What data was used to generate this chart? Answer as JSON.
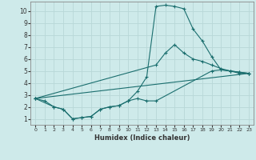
{
  "xlabel": "Humidex (Indice chaleur)",
  "xlim": [
    -0.5,
    23.5
  ],
  "ylim": [
    0.5,
    10.8
  ],
  "xticks": [
    0,
    1,
    2,
    3,
    4,
    5,
    6,
    7,
    8,
    9,
    10,
    11,
    12,
    13,
    14,
    15,
    16,
    17,
    18,
    19,
    20,
    21,
    22,
    23
  ],
  "yticks": [
    1,
    2,
    3,
    4,
    5,
    6,
    7,
    8,
    9,
    10
  ],
  "bg_color": "#ceeaea",
  "line_color": "#1a6e6e",
  "grid_color": "#b8d8d8",
  "series": [
    {
      "x": [
        0,
        1,
        2,
        3,
        4,
        5,
        6,
        7,
        8,
        9,
        10,
        11,
        12,
        13,
        14,
        15,
        16,
        17,
        18,
        19,
        20,
        21,
        22,
        23
      ],
      "y": [
        2.7,
        2.5,
        2.0,
        1.8,
        1.0,
        1.1,
        1.2,
        1.8,
        2.0,
        2.1,
        2.5,
        3.3,
        4.5,
        10.4,
        10.5,
        10.4,
        10.2,
        8.5,
        7.5,
        6.2,
        5.1,
        5.0,
        4.8,
        4.8
      ]
    },
    {
      "x": [
        0,
        13,
        14,
        15,
        16,
        17,
        18,
        19,
        20,
        21,
        22,
        23
      ],
      "y": [
        2.7,
        5.5,
        6.5,
        7.2,
        6.5,
        6.0,
        5.8,
        5.5,
        5.2,
        5.0,
        4.9,
        4.8
      ]
    },
    {
      "x": [
        0,
        23
      ],
      "y": [
        2.7,
        4.8
      ]
    },
    {
      "x": [
        0,
        2,
        3,
        4,
        5,
        6,
        7,
        8,
        9,
        10,
        11,
        12,
        13,
        19,
        20,
        21,
        22,
        23
      ],
      "y": [
        2.7,
        2.0,
        1.8,
        1.0,
        1.1,
        1.2,
        1.8,
        2.0,
        2.1,
        2.5,
        2.7,
        2.5,
        2.5,
        5.0,
        5.1,
        5.0,
        4.9,
        4.8
      ]
    }
  ]
}
